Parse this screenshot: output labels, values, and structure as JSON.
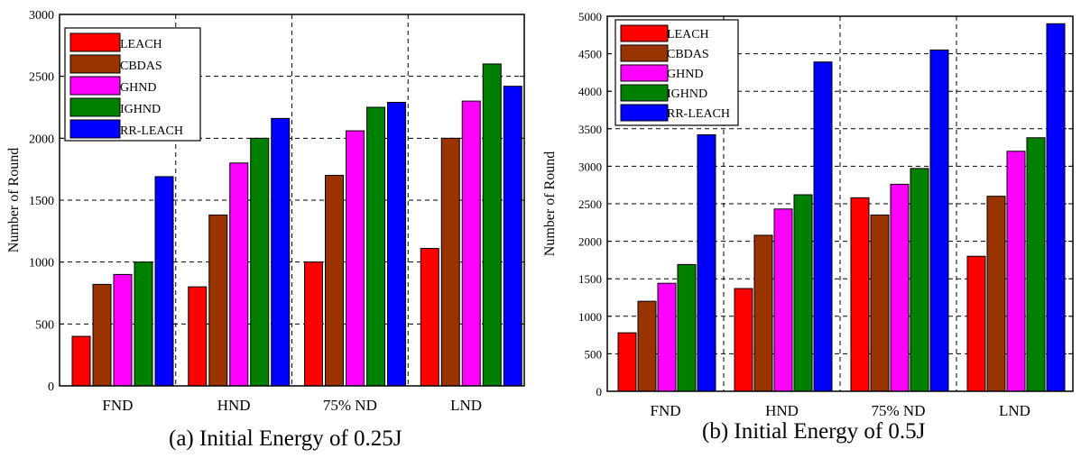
{
  "figure": {
    "captions": [
      "(a) Initial Energy of 0.25J",
      "(b) Initial Energy of 0.5J"
    ]
  },
  "chart_data": [
    {
      "type": "bar",
      "ylabel": "Number of Round",
      "ylim": [
        0,
        3000
      ],
      "yticks": [
        0,
        500,
        1000,
        1500,
        2000,
        2500,
        3000
      ],
      "categories": [
        "FND",
        "HND",
        "75% ND",
        "LND"
      ],
      "grid": true,
      "legend_position": "top-left",
      "series": [
        {
          "name": "LEACH",
          "color": "#ff0000",
          "values": [
            400,
            800,
            1000,
            1110
          ]
        },
        {
          "name": "CBDAS",
          "color": "#993300",
          "values": [
            820,
            1380,
            1700,
            2000
          ]
        },
        {
          "name": "GHND",
          "color": "#ff00ff",
          "values": [
            900,
            1800,
            2060,
            2300
          ]
        },
        {
          "name": "IGHND",
          "color": "#008000",
          "values": [
            1000,
            2000,
            2250,
            2600
          ]
        },
        {
          "name": "RR-LEACH",
          "color": "#0000ff",
          "values": [
            1690,
            2160,
            2290,
            2420
          ]
        }
      ]
    },
    {
      "type": "bar",
      "ylabel": "Number of Round",
      "ylim": [
        0,
        5000
      ],
      "yticks": [
        0,
        500,
        1000,
        1500,
        2000,
        2500,
        3000,
        3500,
        4000,
        4500,
        5000
      ],
      "categories": [
        "FND",
        "HND",
        "75% ND",
        "LND"
      ],
      "grid": true,
      "legend_position": "top-left",
      "series": [
        {
          "name": "LEACH",
          "color": "#ff0000",
          "values": [
            780,
            1370,
            2580,
            1800
          ]
        },
        {
          "name": "CBDAS",
          "color": "#993300",
          "values": [
            1200,
            2080,
            2350,
            2600
          ]
        },
        {
          "name": "GHND",
          "color": "#ff00ff",
          "values": [
            1440,
            2430,
            2760,
            3200
          ]
        },
        {
          "name": "IGHND",
          "color": "#008000",
          "values": [
            1690,
            2620,
            2970,
            3380
          ]
        },
        {
          "name": "RR-LEACH",
          "color": "#0000ff",
          "values": [
            3420,
            4390,
            4550,
            4900
          ]
        }
      ]
    }
  ]
}
